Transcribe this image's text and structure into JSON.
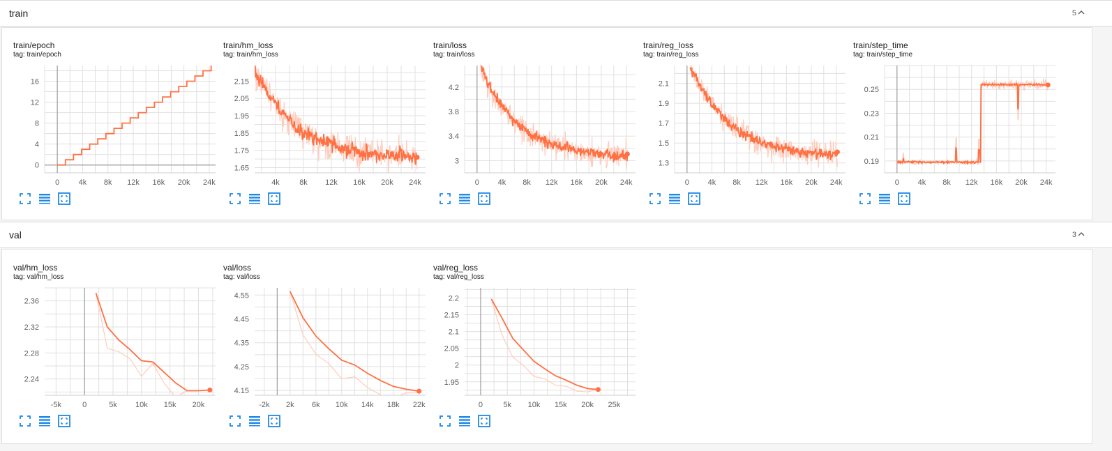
{
  "colors": {
    "line": "#ff7043",
    "raw": "#ffccbc",
    "grid": "#e0e0e0",
    "axis": "#9e9e9e",
    "icon": "#1e88e5"
  },
  "icons": {
    "fit": "fullscreen-icon",
    "log": "log-scale-icon",
    "reset": "fit-domain-icon",
    "chevron": "chevron-up-icon"
  },
  "sections": {
    "train": {
      "title": "train",
      "count": "5"
    },
    "val": {
      "title": "val",
      "count": "3"
    }
  },
  "cards": [
    {
      "title": "train/epoch",
      "tag": "tag: train/epoch"
    },
    {
      "title": "train/hm_loss",
      "tag": "tag: train/hm_loss"
    },
    {
      "title": "train/loss",
      "tag": "tag: train/loss"
    },
    {
      "title": "train/reg_loss",
      "tag": "tag: train/reg_loss"
    },
    {
      "title": "train/step_time",
      "tag": "tag: train/step_time"
    },
    {
      "title": "val/hm_loss",
      "tag": "tag: val/hm_loss"
    },
    {
      "title": "val/loss",
      "tag": "tag: val/loss"
    },
    {
      "title": "val/reg_loss",
      "tag": "tag: val/reg_loss"
    }
  ],
  "chart_data": [
    {
      "type": "line",
      "title": "train/epoch",
      "xlim": [
        -2000,
        25000
      ],
      "ylim": [
        -1.5,
        19
      ],
      "xticks": [
        0,
        4000,
        8000,
        12000,
        16000,
        20000,
        24000
      ],
      "xticklabels": [
        "0",
        "4k",
        "8k",
        "12k",
        "16k",
        "20k",
        "24k"
      ],
      "yticks": [
        0,
        4,
        8,
        12,
        16
      ],
      "yticklabels": [
        "0",
        "4",
        "8",
        "12",
        "16"
      ],
      "gen": "staircase",
      "x_end": 24300,
      "y_end": 19,
      "seed": 1
    },
    {
      "type": "line",
      "title": "train/hm_loss",
      "xlim": [
        1000,
        25500
      ],
      "ylim": [
        1.62,
        2.24
      ],
      "xticks": [
        4000,
        8000,
        12000,
        16000,
        20000,
        24000
      ],
      "xticklabels": [
        "4k",
        "8k",
        "12k",
        "16k",
        "20k",
        "24k"
      ],
      "yticks": [
        1.65,
        1.75,
        1.85,
        1.95,
        2.05,
        2.15
      ],
      "yticklabels": [
        "1.65",
        "1.75",
        "1.85",
        "1.95",
        "2.05",
        "2.15"
      ],
      "gen": "noisy",
      "x_start": 1000,
      "x_end": 24300,
      "y_start": 2.22,
      "y_end": 1.7,
      "decay": 6000,
      "noise": 0.04,
      "rawnoise": 0.09,
      "seed": 2
    },
    {
      "type": "line",
      "title": "train/loss",
      "xlim": [
        -2000,
        25500
      ],
      "ylim": [
        2.8,
        4.55
      ],
      "xticks": [
        0,
        4000,
        8000,
        12000,
        16000,
        20000,
        24000
      ],
      "xticklabels": [
        "0",
        "4k",
        "8k",
        "12k",
        "16k",
        "20k",
        "24k"
      ],
      "yticks": [
        3,
        3.4,
        3.8,
        4.2
      ],
      "yticklabels": [
        "3",
        "3.4",
        "3.8",
        "4.2"
      ],
      "gen": "noisy",
      "x_start": 500,
      "x_end": 24200,
      "y_start": 4.55,
      "y_end": 3.05,
      "decay": 6000,
      "noise": 0.08,
      "rawnoise": 0.2,
      "seed": 3
    },
    {
      "type": "line",
      "title": "train/reg_loss",
      "xlim": [
        -2000,
        25500
      ],
      "ylim": [
        1.2,
        2.28
      ],
      "xticks": [
        0,
        4000,
        8000,
        12000,
        16000,
        20000,
        24000
      ],
      "xticklabels": [
        "0",
        "4k",
        "8k",
        "12k",
        "16k",
        "20k",
        "24k"
      ],
      "yticks": [
        1.3,
        1.5,
        1.7,
        1.9,
        2.1
      ],
      "yticklabels": [
        "1.3",
        "1.5",
        "1.7",
        "1.9",
        "2.1"
      ],
      "gen": "noisy",
      "x_start": 500,
      "x_end": 24200,
      "y_start": 2.28,
      "y_end": 1.35,
      "decay": 6500,
      "noise": 0.05,
      "rawnoise": 0.12,
      "seed": 4
    },
    {
      "type": "line",
      "title": "train/step_time",
      "xlim": [
        -2000,
        25500
      ],
      "ylim": [
        0.18,
        0.27
      ],
      "xticks": [
        0,
        4000,
        8000,
        12000,
        16000,
        20000,
        24000
      ],
      "xticklabels": [
        "0",
        "4k",
        "8k",
        "12k",
        "16k",
        "20k",
        "24k"
      ],
      "yticks": [
        0.19,
        0.21,
        0.23,
        0.25
      ],
      "yticklabels": [
        "0.19",
        "0.21",
        "0.23",
        "0.25"
      ],
      "gen": "step",
      "x_start": 0,
      "x_end": 24300,
      "y_low": 0.189,
      "y_high": 0.254,
      "x_step": 13500,
      "seed": 5
    },
    {
      "type": "line",
      "title": "val/hm_loss",
      "xlim": [
        -7000,
        23000
      ],
      "ylim": [
        2.215,
        2.38
      ],
      "xticks": [
        -5000,
        0,
        5000,
        10000,
        15000,
        20000
      ],
      "xticklabels": [
        "-5k",
        "0",
        "5k",
        "10k",
        "15k",
        "20k"
      ],
      "yticks": [
        2.24,
        2.28,
        2.32,
        2.36
      ],
      "yticklabels": [
        "2.24",
        "2.28",
        "2.32",
        "2.36"
      ],
      "x": [
        2000,
        4000,
        6000,
        8000,
        10000,
        12000,
        14000,
        16000,
        18000,
        20000,
        22000
      ],
      "y": [
        2.372,
        2.32,
        2.3,
        2.285,
        2.268,
        2.266,
        2.25,
        2.234,
        2.222,
        2.222,
        2.223
      ],
      "raw": [
        2.372,
        2.287,
        2.282,
        2.271,
        2.244,
        2.264,
        2.233,
        2.212,
        2.222,
        2.222,
        2.223
      ]
    },
    {
      "type": "line",
      "title": "val/loss",
      "xlim": [
        -3500,
        23000
      ],
      "ylim": [
        4.13,
        4.58
      ],
      "xticks": [
        -2000,
        2000,
        6000,
        10000,
        14000,
        18000,
        22000
      ],
      "xticklabels": [
        "-2k",
        "2k",
        "6k",
        "10k",
        "14k",
        "18k",
        "22k"
      ],
      "yticks": [
        4.15,
        4.25,
        4.35,
        4.45,
        4.55
      ],
      "yticklabels": [
        "4.15",
        "4.25",
        "4.35",
        "4.45",
        "4.55"
      ],
      "x": [
        2000,
        4000,
        6000,
        8000,
        10000,
        12000,
        14000,
        16000,
        18000,
        20000,
        22000
      ],
      "y": [
        4.565,
        4.455,
        4.378,
        4.325,
        4.277,
        4.257,
        4.222,
        4.192,
        4.167,
        4.155,
        4.147
      ],
      "raw": [
        4.565,
        4.383,
        4.302,
        4.262,
        4.199,
        4.207,
        4.162,
        4.132,
        4.12,
        4.14,
        4.14
      ]
    },
    {
      "type": "line",
      "title": "val/reg_loss",
      "xlim": [
        -3000,
        29000
      ],
      "ylim": [
        1.91,
        2.23
      ],
      "xticks": [
        0,
        5000,
        10000,
        15000,
        20000,
        25000
      ],
      "xticklabels": [
        "0",
        "5k",
        "10k",
        "15k",
        "20k",
        "25k"
      ],
      "yticks": [
        1.95,
        2,
        2.05,
        2.1,
        2.15,
        2.2
      ],
      "yticklabels": [
        "1.95",
        "2",
        "2.05",
        "2.1",
        "2.15",
        "2.2"
      ],
      "x": [
        2000,
        4000,
        6000,
        8000,
        10000,
        12000,
        14000,
        16000,
        18000,
        20000,
        22000
      ],
      "y": [
        2.197,
        2.14,
        2.08,
        2.045,
        2.011,
        1.989,
        1.968,
        1.955,
        1.94,
        1.93,
        1.927
      ],
      "raw": [
        2.197,
        2.09,
        2.024,
        1.999,
        1.966,
        1.959,
        1.94,
        1.937,
        1.922,
        1.92,
        1.927
      ]
    }
  ]
}
